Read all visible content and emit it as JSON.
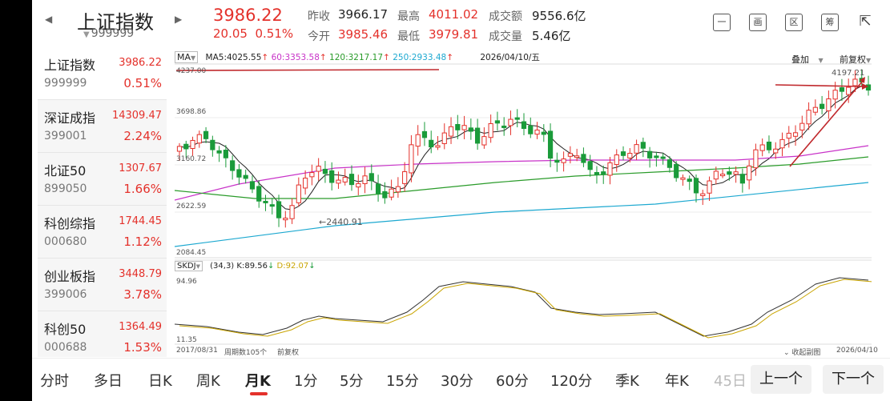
{
  "header": {
    "name": "上证指数",
    "code": "999999",
    "price": "3986.22",
    "change": "20.05",
    "change_pct": "0.51%",
    "quotes": [
      {
        "label": "昨收",
        "value": "3966.17",
        "tone": "neutral"
      },
      {
        "label": "今开",
        "value": "3985.46",
        "tone": "red"
      },
      {
        "label": "最高",
        "value": "4011.02",
        "tone": "red"
      },
      {
        "label": "最低",
        "value": "3979.81",
        "tone": "red"
      },
      {
        "label": "成交额",
        "value": "9556.6亿",
        "tone": "neutral"
      },
      {
        "label": "成交量",
        "value": "5.46亿",
        "tone": "neutral"
      }
    ],
    "tools": [
      "minimize-icon",
      "drawing-icon",
      "region-icon",
      "chip-icon",
      "fullscreen-icon"
    ],
    "tool_glyphs": [
      "一",
      "画",
      "区",
      "筹",
      "⇱"
    ]
  },
  "sidebar": {
    "items": [
      {
        "name": "上证指数",
        "price": "3986.22",
        "code": "999999",
        "pct": "0.51%"
      },
      {
        "name": "深证成指",
        "price": "14309.47",
        "code": "399001",
        "pct": "2.24%"
      },
      {
        "name": "北证50",
        "price": "1307.67",
        "code": "899050",
        "pct": "1.66%"
      },
      {
        "name": "科创综指",
        "price": "1744.45",
        "code": "000680",
        "pct": "1.12%"
      },
      {
        "name": "创业板指",
        "price": "3448.79",
        "code": "399006",
        "pct": "3.78%"
      },
      {
        "name": "科创50",
        "price": "1364.49",
        "code": "000688",
        "pct": "1.53%"
      }
    ]
  },
  "ma_bar": {
    "selector": "MA",
    "ma5": "MA5:4025.55",
    "ma60": "60:3353.58",
    "ma120": "120:3217.17",
    "ma250": "250:2933.48",
    "date": "2026/04/10/五",
    "overlay": "叠加",
    "adjust": "前复权"
  },
  "chart": {
    "y_ticks": [
      "4237.00",
      "3698.86",
      "3160.72",
      "2622.59",
      "2084.45"
    ],
    "high_label": "4197.21",
    "low_label": "2440.91",
    "colors": {
      "up": "#e4312b",
      "down": "#1a9b3a",
      "ma5": "#222222",
      "ma60": "#c832c8",
      "ma120": "#2a9b2a",
      "ma250": "#1ca8d0"
    }
  },
  "skdj": {
    "name": "SKDJ",
    "params": "(34,3)",
    "k": "K:89.56",
    "d": "D:92.07",
    "y_top": "94.96",
    "y_bottom": "11.35"
  },
  "footer": {
    "start_date": "2017/08/31",
    "period_count": "周期数105个",
    "adjust": "前复权",
    "collapse": "收起副图",
    "end_date": "2026/04/10"
  },
  "tabs": [
    "分时",
    "多日",
    "日K",
    "周K",
    "月K",
    "1分",
    "5分",
    "15分",
    "30分",
    "60分",
    "120分",
    "季K",
    "年K",
    "45日"
  ],
  "active_tab": "月K",
  "nav": {
    "prev": "上一个",
    "next": "下一个"
  }
}
